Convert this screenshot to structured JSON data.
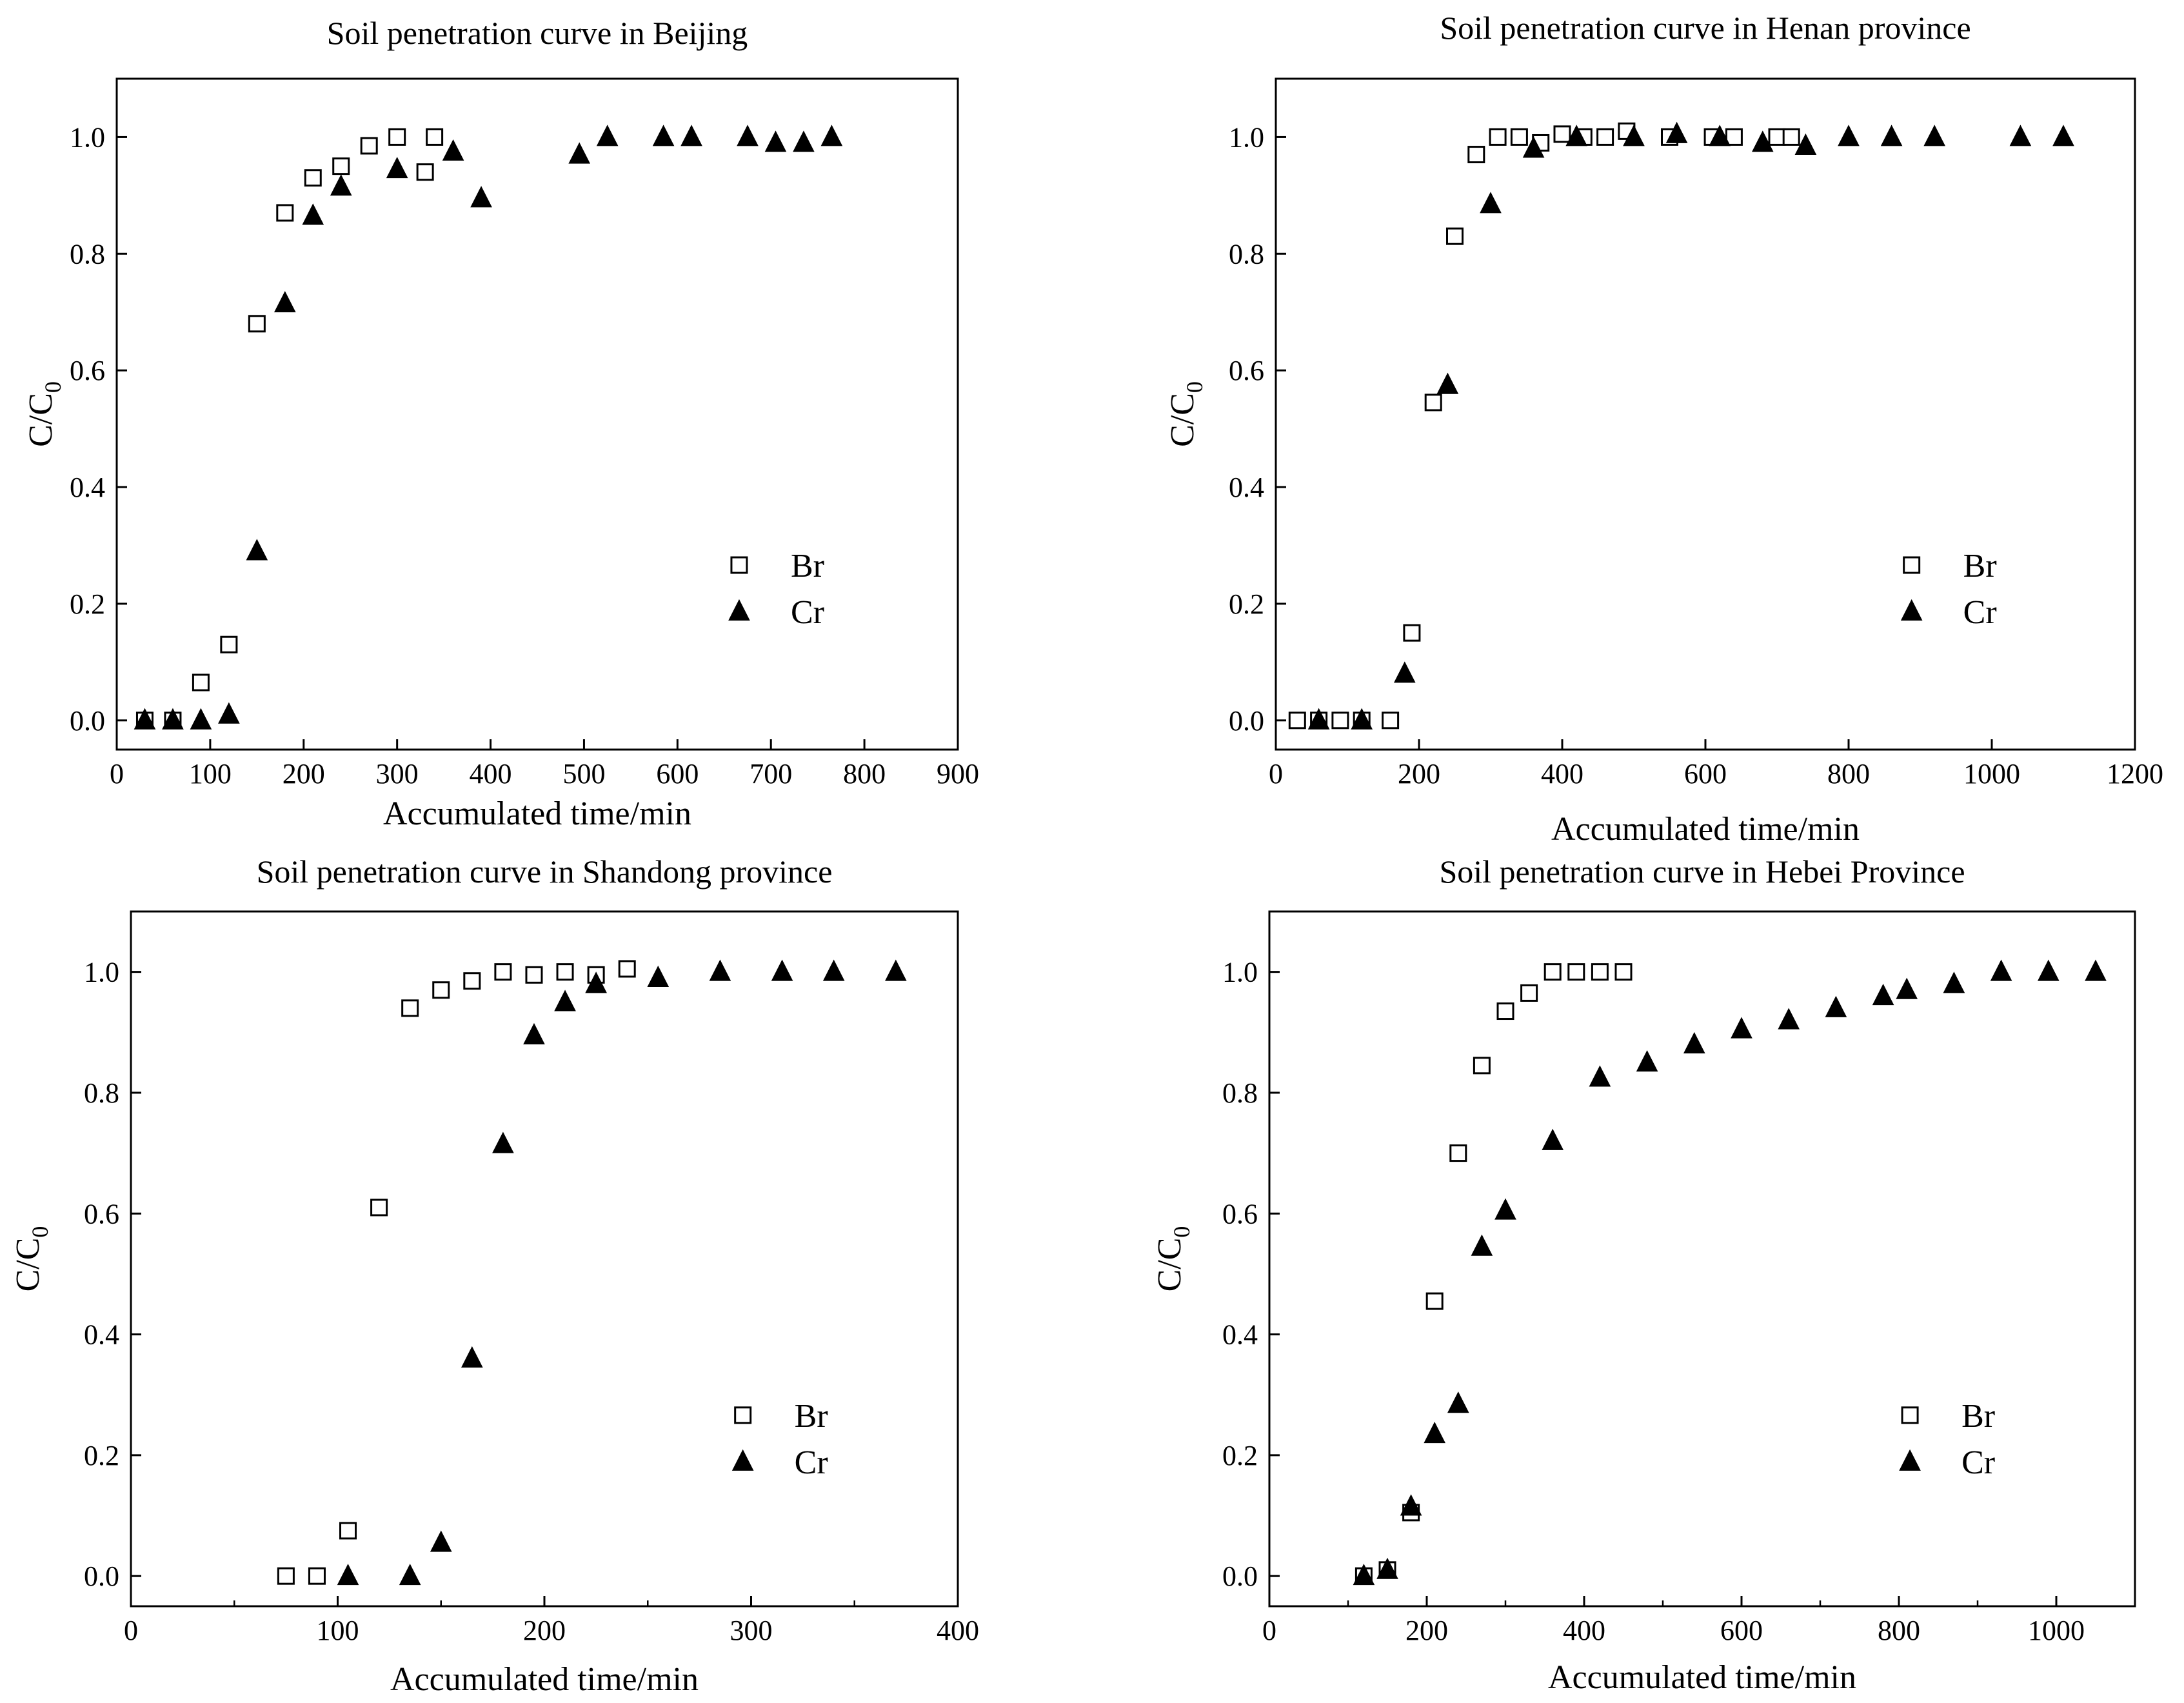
{
  "chart_data": [
    {
      "type": "scatter",
      "title": "Soil penetration curve in Beijing",
      "xlabel": "Accumulated time/min",
      "ylabel_main": "C/C",
      "ylabel_sub": "0",
      "xlim": [
        0,
        900
      ],
      "ylim": [
        -0.05,
        1.1
      ],
      "xticks": [
        0,
        100,
        200,
        300,
        400,
        500,
        600,
        700,
        800,
        900
      ],
      "yticks": [
        0.0,
        0.2,
        0.4,
        0.6,
        0.8,
        1.0
      ],
      "xtick_labels": [
        "0",
        "100",
        "200",
        "300",
        "400",
        "500",
        "600",
        "700",
        "800",
        "900"
      ],
      "ytick_labels": [
        "0.0",
        "0.2",
        "0.4",
        "0.6",
        "0.8",
        "1.0"
      ],
      "legend_position": "lower-right",
      "series": [
        {
          "name": "Br",
          "marker": "open-square",
          "x": [
            30,
            60,
            90,
            120,
            150,
            180,
            210,
            240,
            270,
            300,
            330,
            340
          ],
          "y": [
            0.0,
            0.0,
            0.065,
            0.13,
            0.68,
            0.87,
            0.93,
            0.95,
            0.985,
            1.0,
            0.94,
            1.0
          ]
        },
        {
          "name": "Cr",
          "marker": "filled-triangle",
          "x": [
            30,
            60,
            90,
            120,
            150,
            180,
            210,
            240,
            300,
            360,
            390,
            495,
            525,
            585,
            615,
            675,
            705,
            735,
            765
          ],
          "y": [
            0.0,
            0.0,
            0.0,
            0.01,
            0.29,
            0.715,
            0.865,
            0.915,
            0.945,
            0.975,
            0.895,
            0.97,
            1.0,
            1.0,
            1.0,
            1.0,
            0.99,
            0.99,
            1.0
          ]
        }
      ]
    },
    {
      "type": "scatter",
      "title": "Soil penetration curve in Henan province",
      "xlabel": "Accumulated time/min",
      "ylabel_main": "C/C",
      "ylabel_sub": "0",
      "xlim": [
        0,
        1200
      ],
      "ylim": [
        -0.05,
        1.1
      ],
      "xticks": [
        0,
        200,
        400,
        600,
        800,
        1000,
        1200
      ],
      "yticks": [
        0.0,
        0.2,
        0.4,
        0.6,
        0.8,
        1.0
      ],
      "xtick_labels": [
        "0",
        "200",
        "400",
        "600",
        "800",
        "1000",
        "1200"
      ],
      "ytick_labels": [
        "0.0",
        "0.2",
        "0.4",
        "0.6",
        "0.8",
        "1.0"
      ],
      "legend_position": "lower-right",
      "series": [
        {
          "name": "Br",
          "marker": "open-square",
          "x": [
            30,
            60,
            90,
            120,
            160,
            190,
            220,
            250,
            280,
            310,
            340,
            370,
            400,
            430,
            460,
            490,
            550,
            610,
            640,
            700,
            720
          ],
          "y": [
            0.0,
            0.0,
            0.0,
            0.0,
            0.0,
            0.15,
            0.545,
            0.83,
            0.97,
            1.0,
            1.0,
            0.99,
            1.005,
            1.0,
            1.0,
            1.01,
            1.0,
            1.0,
            1.0,
            1.0,
            1.0
          ]
        },
        {
          "name": "Cr",
          "marker": "filled-triangle",
          "x": [
            60,
            120,
            180,
            240,
            300,
            360,
            420,
            500,
            560,
            620,
            680,
            740,
            800,
            860,
            920,
            1040,
            1100
          ],
          "y": [
            0.0,
            0.0,
            0.08,
            0.575,
            0.885,
            0.98,
            1.0,
            1.0,
            1.005,
            1.0,
            0.99,
            0.985,
            1.0,
            1.0,
            1.0,
            1.0,
            1.0
          ]
        }
      ]
    },
    {
      "type": "scatter",
      "title": "Soil penetration curve in Shandong province",
      "xlabel": "Accumulated time/min",
      "ylabel_main": "C/C",
      "ylabel_sub": "0",
      "xlim": [
        0,
        400
      ],
      "ylim": [
        -0.05,
        1.1
      ],
      "xticks": [
        0,
        100,
        200,
        300,
        400
      ],
      "minor_xticks": [
        50,
        150,
        250,
        350
      ],
      "yticks": [
        0.0,
        0.2,
        0.4,
        0.6,
        0.8,
        1.0
      ],
      "xtick_labels": [
        "0",
        "100",
        "200",
        "300",
        "400"
      ],
      "ytick_labels": [
        "0.0",
        "0.2",
        "0.4",
        "0.6",
        "0.8",
        "1.0"
      ],
      "legend_position": "lower-right",
      "series": [
        {
          "name": "Br",
          "marker": "open-square",
          "x": [
            75,
            90,
            105,
            120,
            135,
            150,
            165,
            180,
            195,
            210,
            225,
            240
          ],
          "y": [
            0.0,
            0.0,
            0.075,
            0.61,
            0.94,
            0.97,
            0.985,
            1.0,
            0.995,
            1.0,
            0.995,
            1.005
          ]
        },
        {
          "name": "Cr",
          "marker": "filled-triangle",
          "x": [
            105,
            135,
            150,
            165,
            180,
            195,
            210,
            225,
            255,
            285,
            315,
            340,
            370
          ],
          "y": [
            0.0,
            0.0,
            0.055,
            0.36,
            0.715,
            0.895,
            0.95,
            0.98,
            0.99,
            1.0,
            1.0,
            1.0,
            1.0
          ]
        }
      ]
    },
    {
      "type": "scatter",
      "title": "Soil penetration curve in Hebei Province",
      "xlabel": "Accumulated time/min",
      "ylabel_main": "C/C",
      "ylabel_sub": "0",
      "xlim": [
        0,
        1100
      ],
      "ylim": [
        -0.05,
        1.1
      ],
      "xticks": [
        0,
        200,
        400,
        600,
        800,
        1000
      ],
      "minor_xticks": [
        100,
        300,
        500,
        700,
        900,
        1100
      ],
      "yticks": [
        0.0,
        0.2,
        0.4,
        0.6,
        0.8,
        1.0
      ],
      "xtick_labels": [
        "0",
        "200",
        "400",
        "600",
        "800",
        "1000"
      ],
      "ytick_labels": [
        "0.0",
        "0.2",
        "0.4",
        "0.6",
        "0.8",
        "1.0"
      ],
      "legend_position": "lower-right",
      "series": [
        {
          "name": "Br",
          "marker": "open-square",
          "x": [
            120,
            150,
            180,
            210,
            240,
            270,
            300,
            330,
            360,
            390,
            420,
            450
          ],
          "y": [
            0.0,
            0.01,
            0.105,
            0.455,
            0.7,
            0.845,
            0.935,
            0.965,
            1.0,
            1.0,
            1.0,
            1.0
          ]
        },
        {
          "name": "Cr",
          "marker": "filled-triangle",
          "x": [
            120,
            150,
            180,
            210,
            240,
            270,
            300,
            360,
            420,
            480,
            540,
            600,
            660,
            720,
            780,
            810,
            870,
            930,
            990,
            1050
          ],
          "y": [
            0.0,
            0.01,
            0.115,
            0.235,
            0.285,
            0.545,
            0.605,
            0.72,
            0.825,
            0.85,
            0.88,
            0.905,
            0.92,
            0.94,
            0.96,
            0.97,
            0.98,
            1.0,
            1.0,
            1.0
          ]
        }
      ]
    }
  ]
}
